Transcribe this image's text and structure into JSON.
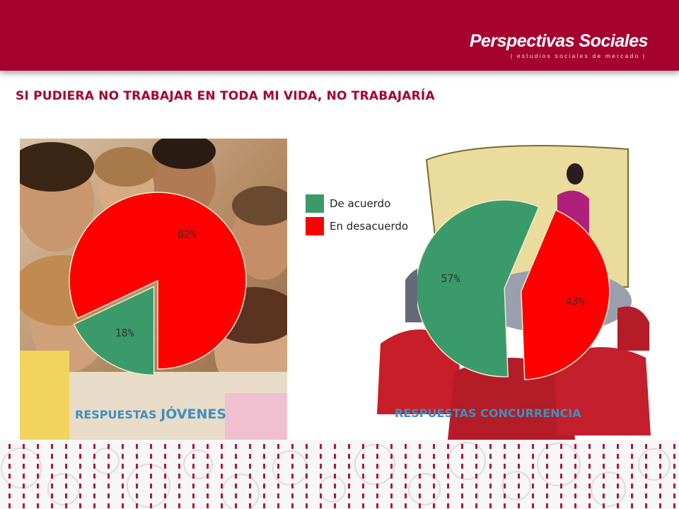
{
  "brand": {
    "name": "Perspectivas Sociales",
    "tagline": "| estudios sociales de mercado |"
  },
  "title": "SI PUDIERA NO TRABAJAR EN TODA MI VIDA, NO TRABAJARÍA",
  "legend": [
    {
      "label": "De acuerdo",
      "color": "#3a9a6a"
    },
    {
      "label": "En desacuerdo",
      "color": "#ff0000"
    }
  ],
  "captions": {
    "left_small": "RESPUESTAS ",
    "left_big": "JÓVENES",
    "right": "RESPUESTAS CONCURRENCIA"
  },
  "chart_data": [
    {
      "type": "pie",
      "series": [
        {
          "name": "De acuerdo",
          "value": 18,
          "label": "18%"
        },
        {
          "name": "En desacuerdo",
          "value": 82,
          "label": "82%"
        }
      ]
    },
    {
      "type": "pie",
      "series": [
        {
          "name": "De acuerdo",
          "value": 57,
          "label": "57%"
        },
        {
          "name": "En desacuerdo",
          "value": 43,
          "label": "43%"
        }
      ]
    }
  ],
  "colors": {
    "header": "#a6022f",
    "agree": "#3a9a6a",
    "disagree": "#ff0000",
    "caption": "#3f8fc0"
  }
}
